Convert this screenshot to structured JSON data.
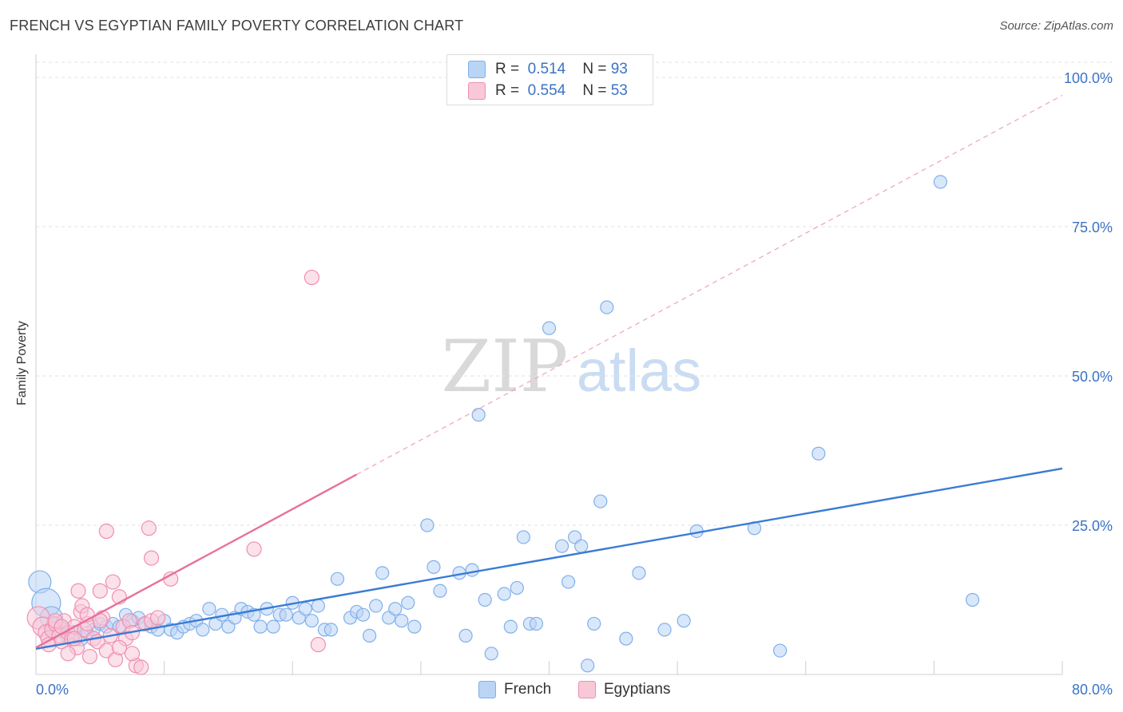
{
  "title": "FRENCH VS EGYPTIAN FAMILY POVERTY CORRELATION CHART",
  "source": "Source: ZipAtlas.com",
  "watermark": {
    "zip": "ZIP",
    "atlas": "atlas"
  },
  "legend": {
    "rows": [
      {
        "r_label": "R =",
        "r_value": "0.514",
        "n_label": "N =",
        "n_value": "93",
        "color": "#7fb0ea",
        "fill": "#b9d4f5"
      },
      {
        "r_label": "R =",
        "r_value": "0.554",
        "n_label": "N =",
        "n_value": "53",
        "color": "#f08fb0",
        "fill": "#f8c8d8"
      }
    ]
  },
  "bottom_legend": [
    {
      "label": "French",
      "fill": "#b9d4f5",
      "stroke": "#7fb0ea"
    },
    {
      "label": "Egyptians",
      "fill": "#f8c8d8",
      "stroke": "#f08fb0"
    }
  ],
  "chart_data": {
    "type": "scatter",
    "title": "FRENCH VS EGYPTIAN FAMILY POVERTY CORRELATION CHART",
    "xlabel": "",
    "ylabel": "Family Poverty",
    "xlim": [
      0,
      80
    ],
    "ylim": [
      0,
      100
    ],
    "x_tick_labels": [
      "0.0%",
      "80.0%"
    ],
    "y_tick_labels": [
      "25.0%",
      "50.0%",
      "75.0%",
      "100.0%"
    ],
    "y_ticks": [
      25,
      50,
      75,
      100
    ],
    "grid": true,
    "legend_position": "top-center",
    "series": [
      {
        "name": "French",
        "color": "#3a7bd5",
        "fill": "#b9d4f5",
        "stroke": "#7fb0ea",
        "trend": {
          "x": [
            0,
            80
          ],
          "y": [
            4.3,
            34.5
          ],
          "style": "solid"
        },
        "points": [
          [
            0.3,
            15.5,
            14
          ],
          [
            0.8,
            12.0,
            18
          ],
          [
            1.2,
            9.5,
            14
          ],
          [
            1.5,
            8.0,
            12
          ],
          [
            2.0,
            7.5,
            10
          ],
          [
            2.5,
            6.5,
            10
          ],
          [
            3.0,
            7.0,
            9
          ],
          [
            3.5,
            6.0,
            9
          ],
          [
            4.0,
            7.0,
            8
          ],
          [
            4.5,
            7.5,
            8
          ],
          [
            5.0,
            8.5,
            8
          ],
          [
            5.5,
            8.0,
            8
          ],
          [
            6.0,
            8.5,
            8
          ],
          [
            6.5,
            8.0,
            8
          ],
          [
            7.0,
            10.0,
            8
          ],
          [
            7.5,
            9.0,
            8
          ],
          [
            8.0,
            9.5,
            8
          ],
          [
            8.5,
            8.5,
            8
          ],
          [
            9.0,
            8.0,
            8
          ],
          [
            9.5,
            7.5,
            8
          ],
          [
            10.0,
            9.0,
            8
          ],
          [
            10.5,
            7.5,
            8
          ],
          [
            11.0,
            7.0,
            8
          ],
          [
            11.5,
            8.0,
            8
          ],
          [
            12.0,
            8.5,
            8
          ],
          [
            12.5,
            9.0,
            8
          ],
          [
            13.0,
            7.5,
            8
          ],
          [
            13.5,
            11.0,
            8
          ],
          [
            14.0,
            8.5,
            8
          ],
          [
            14.5,
            10.0,
            8
          ],
          [
            15.0,
            8.0,
            8
          ],
          [
            15.5,
            9.5,
            8
          ],
          [
            16.0,
            11.0,
            8
          ],
          [
            16.5,
            10.5,
            8
          ],
          [
            17.0,
            10.0,
            8
          ],
          [
            17.5,
            8.0,
            8
          ],
          [
            18.0,
            11.0,
            8
          ],
          [
            18.5,
            8.0,
            8
          ],
          [
            19.0,
            10.0,
            8
          ],
          [
            19.5,
            10.0,
            8
          ],
          [
            20.0,
            12.0,
            8
          ],
          [
            20.5,
            9.5,
            8
          ],
          [
            21.0,
            11.0,
            8
          ],
          [
            21.5,
            9.0,
            8
          ],
          [
            22.0,
            11.5,
            8
          ],
          [
            22.5,
            7.5,
            8
          ],
          [
            23.0,
            7.5,
            8
          ],
          [
            23.5,
            16.0,
            8
          ],
          [
            24.5,
            9.5,
            8
          ],
          [
            25.0,
            10.5,
            8
          ],
          [
            25.5,
            10.0,
            8
          ],
          [
            26.0,
            6.5,
            8
          ],
          [
            26.5,
            11.5,
            8
          ],
          [
            27.0,
            17.0,
            8
          ],
          [
            27.5,
            9.5,
            8
          ],
          [
            28.0,
            11.0,
            8
          ],
          [
            28.5,
            9.0,
            8
          ],
          [
            29.0,
            12.0,
            8
          ],
          [
            29.5,
            8.0,
            8
          ],
          [
            30.5,
            25.0,
            8
          ],
          [
            31.0,
            18.0,
            8
          ],
          [
            31.5,
            14.0,
            8
          ],
          [
            33.0,
            17.0,
            8
          ],
          [
            33.5,
            6.5,
            8
          ],
          [
            34.5,
            43.5,
            8
          ],
          [
            34.0,
            17.5,
            8
          ],
          [
            35.0,
            12.5,
            8
          ],
          [
            35.5,
            3.5,
            8
          ],
          [
            36.5,
            13.5,
            8
          ],
          [
            37.0,
            8.0,
            8
          ],
          [
            37.5,
            14.5,
            8
          ],
          [
            38.0,
            23.0,
            8
          ],
          [
            38.5,
            8.5,
            8
          ],
          [
            39.0,
            8.5,
            8
          ],
          [
            40.0,
            58.0,
            8
          ],
          [
            41.0,
            21.5,
            8
          ],
          [
            41.5,
            15.5,
            8
          ],
          [
            42.0,
            23.0,
            8
          ],
          [
            42.5,
            21.5,
            8
          ],
          [
            43.0,
            1.5,
            8
          ],
          [
            43.5,
            8.5,
            8
          ],
          [
            44.0,
            29.0,
            8
          ],
          [
            44.5,
            61.5,
            8
          ],
          [
            46.0,
            6.0,
            8
          ],
          [
            47.0,
            17.0,
            8
          ],
          [
            49.0,
            7.5,
            8
          ],
          [
            50.5,
            9.0,
            8
          ],
          [
            51.5,
            24.0,
            8
          ],
          [
            56.0,
            24.5,
            8
          ],
          [
            58.0,
            4.0,
            8
          ],
          [
            61.0,
            37.0,
            8
          ],
          [
            70.5,
            82.5,
            8
          ],
          [
            73.0,
            12.5,
            8
          ]
        ]
      },
      {
        "name": "Egyptians",
        "color": "#e8709a",
        "fill": "#f8c8d8",
        "stroke": "#f08fb0",
        "trend": {
          "x": [
            0,
            25
          ],
          "y": [
            4.5,
            33.5
          ],
          "style": "solid",
          "extended": {
            "x": [
              25,
              80
            ],
            "y": [
              33.5,
              97.0
            ],
            "style": "dashed"
          }
        },
        "points": [
          [
            0.2,
            9.5,
            14
          ],
          [
            0.5,
            8.0,
            12
          ],
          [
            0.8,
            7.0,
            10
          ],
          [
            1.0,
            6.0,
            10
          ],
          [
            1.3,
            7.5,
            10
          ],
          [
            1.5,
            8.5,
            9
          ],
          [
            1.8,
            6.5,
            9
          ],
          [
            2.0,
            5.5,
            9
          ],
          [
            2.2,
            9.0,
            9
          ],
          [
            2.5,
            7.0,
            9
          ],
          [
            2.8,
            6.0,
            9
          ],
          [
            3.0,
            8.0,
            9
          ],
          [
            3.2,
            4.5,
            9
          ],
          [
            3.5,
            10.5,
            9
          ],
          [
            3.3,
            14.0,
            9
          ],
          [
            3.6,
            11.5,
            9
          ],
          [
            3.8,
            7.5,
            9
          ],
          [
            4.0,
            8.5,
            9
          ],
          [
            4.2,
            3.0,
            9
          ],
          [
            4.5,
            6.0,
            9
          ],
          [
            4.8,
            5.5,
            9
          ],
          [
            5.0,
            14.0,
            9
          ],
          [
            5.2,
            9.5,
            9
          ],
          [
            5.5,
            4.0,
            9
          ],
          [
            5.8,
            6.5,
            9
          ],
          [
            6.0,
            15.5,
            9
          ],
          [
            6.2,
            2.5,
            9
          ],
          [
            6.5,
            13.0,
            9
          ],
          [
            6.8,
            8.0,
            9
          ],
          [
            7.0,
            6.0,
            9
          ],
          [
            7.3,
            9.0,
            9
          ],
          [
            7.5,
            7.0,
            9
          ],
          [
            5.5,
            24.0,
            9
          ],
          [
            8.5,
            8.5,
            9
          ],
          [
            9.0,
            9.0,
            9
          ],
          [
            8.8,
            24.5,
            9
          ],
          [
            9.0,
            19.5,
            9
          ],
          [
            10.5,
            16.0,
            9
          ],
          [
            7.8,
            1.5,
            9
          ],
          [
            8.2,
            1.2,
            9
          ],
          [
            7.5,
            3.5,
            9
          ],
          [
            6.5,
            4.5,
            9
          ],
          [
            1.0,
            5.0,
            9
          ],
          [
            1.5,
            9.0,
            9
          ],
          [
            2.0,
            8.0,
            9
          ],
          [
            2.5,
            3.5,
            9
          ],
          [
            3.0,
            6.0,
            9
          ],
          [
            4.0,
            10.0,
            9
          ],
          [
            5.0,
            9.0,
            9
          ],
          [
            17.0,
            21.0,
            9
          ],
          [
            21.5,
            66.5,
            9
          ],
          [
            22.0,
            5.0,
            9
          ],
          [
            9.5,
            9.5,
            9
          ]
        ]
      }
    ]
  }
}
